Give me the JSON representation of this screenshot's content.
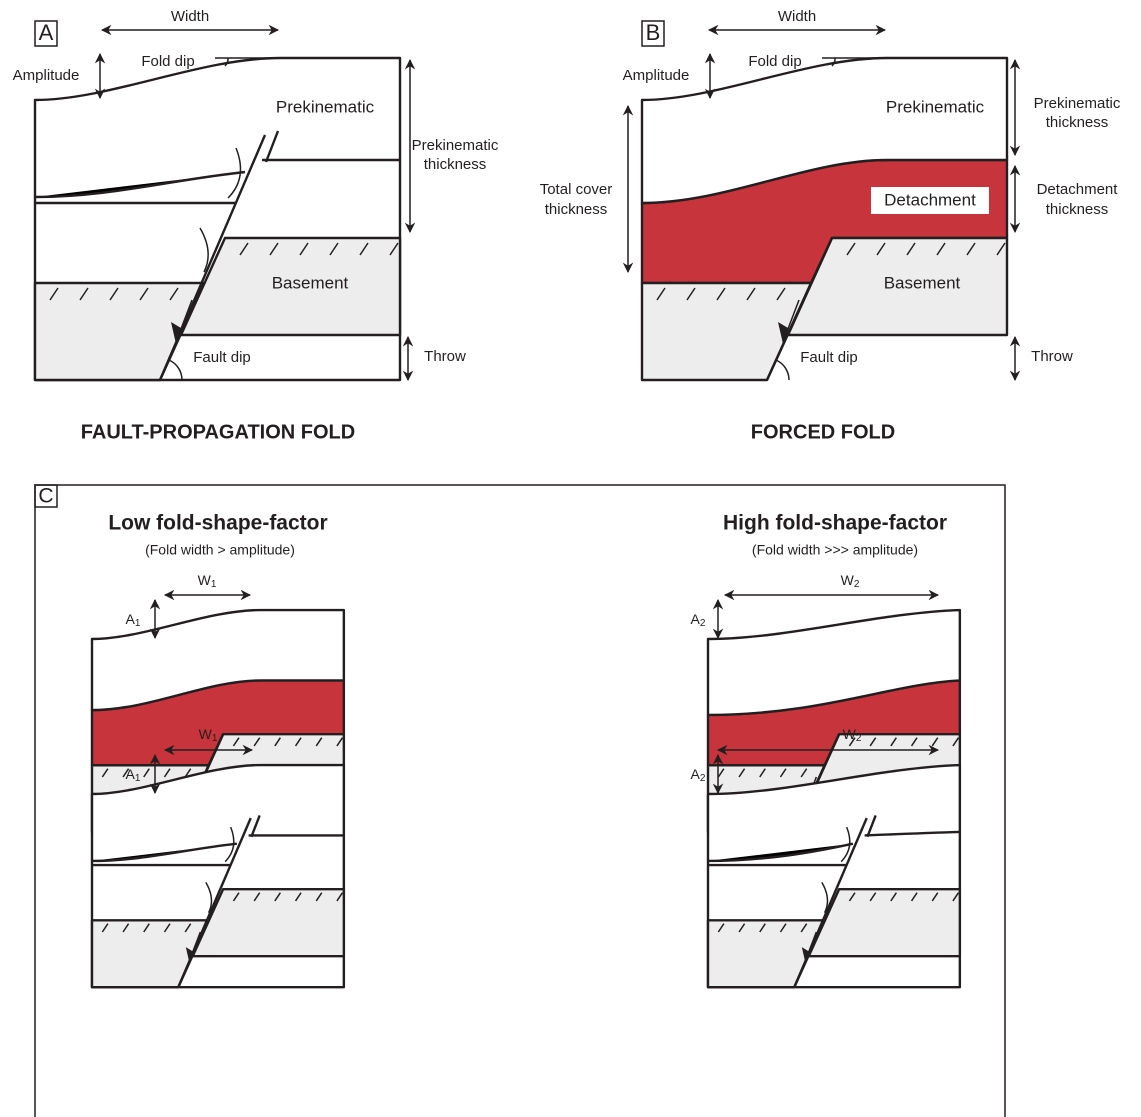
{
  "panel_a": {
    "letter": "A",
    "width": "Width",
    "fold_dip": "Fold dip",
    "amplitude": "Amplitude",
    "layer": "Prekinematic",
    "layer_thickness": [
      "Prekinematic",
      "thickness"
    ],
    "basement": "Basement",
    "fault_dip": "Fault dip",
    "throw": "Throw",
    "caption": "FAULT-PROPAGATION FOLD"
  },
  "panel_b": {
    "letter": "B",
    "width": "Width",
    "fold_dip": "Fold dip",
    "amplitude": "Amplitude",
    "layer": "Prekinematic",
    "layer_thickness": [
      "Prekinematic",
      "thickness"
    ],
    "total_cover_thickness": [
      "Total cover",
      "thickness"
    ],
    "detachment": "Detachment",
    "detachment_thickness": [
      "Detachment",
      "thickness"
    ],
    "basement": "Basement",
    "fault_dip": "Fault dip",
    "throw": "Throw",
    "caption": "FORCED FOLD"
  },
  "panel_c": {
    "letter": "C",
    "low": {
      "title": "Low fold-shape-factor",
      "subtitle": "(Fold width > amplitude)",
      "width_labels": [
        {
          "main": "W",
          "sub": "1"
        },
        {
          "main": "W",
          "sub": "1"
        }
      ],
      "amplitude_labels": [
        {
          "main": "A",
          "sub": "1"
        },
        {
          "main": "A",
          "sub": "1"
        }
      ]
    },
    "high": {
      "title": "High fold-shape-factor",
      "subtitle": "(Fold width >>> amplitude)",
      "width_labels": [
        {
          "main": "W",
          "sub": "2"
        },
        {
          "main": "W",
          "sub": "2"
        }
      ],
      "amplitude_labels": [
        {
          "main": "A",
          "sub": "2"
        },
        {
          "main": "A",
          "sub": "2"
        }
      ]
    }
  }
}
